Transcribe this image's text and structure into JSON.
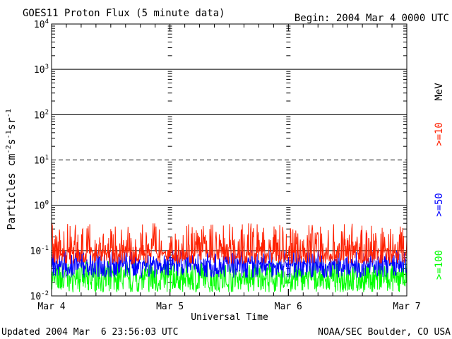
{
  "chart_data": {
    "type": "line",
    "title": "GOES11 Proton Flux (5 minute data)",
    "begin": "Begin: 2004 Mar 4 0000 UTC",
    "xlabel": "Universal Time",
    "ylabel": "Particles cm",
    "ylabel_parts": [
      "Particles cm",
      "-2",
      "s",
      "-1",
      "sr",
      "-1"
    ],
    "x_ticks": [
      "Mar 4",
      "Mar 5",
      "Mar 6",
      "Mar 7"
    ],
    "y_ticks": [
      {
        "base": "10",
        "exp": "-2"
      },
      {
        "base": "10",
        "exp": "-1"
      },
      {
        "base": "10",
        "exp": "0"
      },
      {
        "base": "10",
        "exp": "1"
      },
      {
        "base": "10",
        "exp": "2"
      },
      {
        "base": "10",
        "exp": "3"
      },
      {
        "base": "10",
        "exp": "4"
      }
    ],
    "xlim_days": [
      0,
      3
    ],
    "ylim": [
      0.01,
      10000
    ],
    "yscale": "log",
    "ref_level": 10,
    "energy_unit": "MeV",
    "footer_left": "Updated 2004 Mar  6 23:56:03 UTC",
    "footer_right": "NOAA/SEC Boulder, CO USA",
    "series": [
      {
        "name": ">=10",
        "color": "#ff2000",
        "baseline": 0.09,
        "upper": 0.4,
        "lower": 0.05
      },
      {
        "name": ">=50",
        "color": "#0000ff",
        "baseline": 0.05,
        "upper": 0.1,
        "lower": 0.025
      },
      {
        "name": ">=100",
        "color": "#00ff00",
        "baseline": 0.025,
        "upper": 0.06,
        "lower": 0.012
      }
    ]
  }
}
